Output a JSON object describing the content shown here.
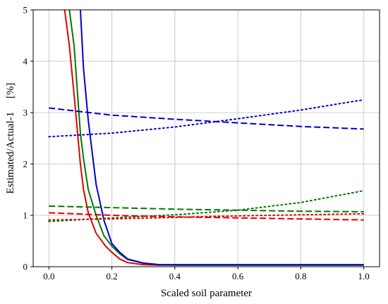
{
  "chart_data": {
    "type": "line",
    "xlabel": "Scaled soil parameter",
    "ylabel": "Estimated/Actual-1     [%]",
    "xlim": [
      -0.05,
      1.05
    ],
    "ylim": [
      0,
      5
    ],
    "x_ticks": [
      "0.0",
      "0.2",
      "0.4",
      "0.6",
      "0.8",
      "1.0"
    ],
    "y_ticks": [
      "0",
      "1",
      "2",
      "3",
      "4",
      "5"
    ],
    "grid": true,
    "colors": {
      "blue": "#0000cc",
      "green": "#007a00",
      "red": "#e00000"
    },
    "series": [
      {
        "color": "red",
        "style": "solid",
        "x": [
          0.05,
          0.065,
          0.08,
          0.1,
          0.11,
          0.125,
          0.15,
          0.18,
          0.2,
          0.225,
          0.25,
          0.3,
          0.35,
          0.4,
          0.5,
          0.6,
          0.8,
          1.0
        ],
        "y": [
          5.0,
          4.3,
          3.35,
          2.0,
          1.5,
          1.05,
          0.65,
          0.4,
          0.28,
          0.15,
          0.08,
          0.04,
          0.03,
          0.03,
          0.03,
          0.03,
          0.03,
          0.03
        ]
      },
      {
        "color": "green",
        "style": "solid",
        "x": [
          0.065,
          0.08,
          0.1,
          0.11,
          0.125,
          0.15,
          0.175,
          0.2,
          0.225,
          0.25,
          0.3,
          0.35,
          0.4,
          0.5,
          0.6,
          0.8,
          1.0
        ],
        "y": [
          5.0,
          4.3,
          2.6,
          2.1,
          1.5,
          1.0,
          0.6,
          0.4,
          0.25,
          0.14,
          0.07,
          0.04,
          0.03,
          0.03,
          0.03,
          0.03,
          0.03
        ]
      },
      {
        "color": "blue",
        "style": "solid",
        "x": [
          0.1,
          0.11,
          0.125,
          0.15,
          0.175,
          0.2,
          0.225,
          0.25,
          0.3,
          0.35,
          0.4,
          0.5,
          0.6,
          0.8,
          1.0
        ],
        "y": [
          5.0,
          3.85,
          2.85,
          1.6,
          0.9,
          0.45,
          0.28,
          0.15,
          0.07,
          0.04,
          0.04,
          0.04,
          0.04,
          0.04,
          0.04
        ]
      },
      {
        "color": "blue",
        "style": "dashed",
        "x": [
          0.0,
          0.2,
          0.4,
          0.6,
          0.8,
          1.0
        ],
        "y": [
          3.09,
          2.95,
          2.87,
          2.8,
          2.73,
          2.68
        ]
      },
      {
        "color": "blue",
        "style": "dotted",
        "x": [
          0.0,
          0.2,
          0.4,
          0.6,
          0.8,
          1.0
        ],
        "y": [
          2.53,
          2.6,
          2.72,
          2.88,
          3.05,
          3.25
        ]
      },
      {
        "color": "green",
        "style": "dashed",
        "x": [
          0.0,
          0.2,
          0.4,
          0.6,
          0.8,
          1.0
        ],
        "y": [
          1.18,
          1.15,
          1.12,
          1.1,
          1.08,
          1.07
        ]
      },
      {
        "color": "green",
        "style": "dotted",
        "x": [
          0.0,
          0.2,
          0.4,
          0.6,
          0.8,
          1.0
        ],
        "y": [
          0.88,
          0.95,
          1.01,
          1.1,
          1.25,
          1.48
        ]
      },
      {
        "color": "red",
        "style": "dashed",
        "x": [
          0.0,
          0.2,
          0.4,
          0.6,
          0.8,
          1.0
        ],
        "y": [
          1.05,
          1.0,
          0.97,
          0.95,
          0.93,
          0.91
        ]
      },
      {
        "color": "red",
        "style": "dotted",
        "x": [
          0.0,
          0.2,
          0.4,
          0.6,
          0.8,
          1.0
        ],
        "y": [
          0.91,
          0.93,
          0.96,
          0.99,
          1.01,
          1.03
        ]
      }
    ]
  }
}
